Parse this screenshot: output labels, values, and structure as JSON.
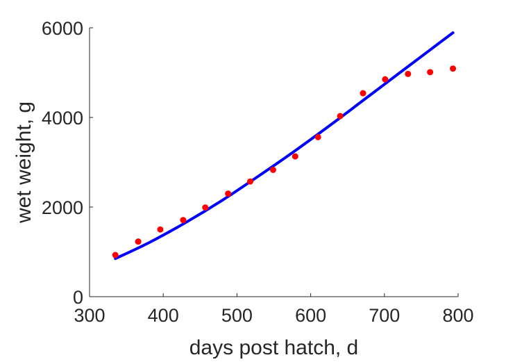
{
  "chart_data": {
    "type": "scatter",
    "title": "",
    "xlabel": "days post hatch, d",
    "ylabel": "wet weight, g",
    "xlim": [
      300,
      800
    ],
    "ylim": [
      0,
      6000
    ],
    "xticks": [
      300,
      400,
      500,
      600,
      700,
      800
    ],
    "yticks": [
      0,
      2000,
      4000,
      6000
    ],
    "grid": false,
    "legend": "none",
    "series": [
      {
        "kind": "scatter",
        "color": "#ff0000",
        "x": [
          335,
          366,
          396,
          427,
          457,
          488,
          518,
          549,
          579,
          610,
          640,
          671,
          701,
          732,
          762,
          793
        ],
        "y": [
          930,
          1230,
          1500,
          1710,
          1990,
          2300,
          2570,
          2830,
          3130,
          3560,
          4030,
          4540,
          4850,
          4970,
          5010,
          5090
        ]
      },
      {
        "kind": "line",
        "color": "#0000ff",
        "x": [
          335,
          380,
          430,
          480,
          530,
          580,
          630,
          680,
          730,
          793
        ],
        "y": [
          850,
          1200,
          1650,
          2150,
          2700,
          3270,
          3870,
          4490,
          5110,
          5890
        ]
      }
    ]
  }
}
